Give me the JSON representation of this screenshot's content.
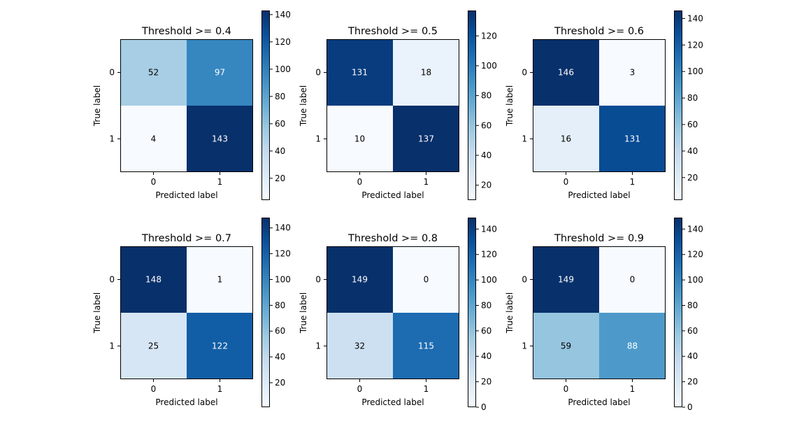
{
  "chart_data": [
    {
      "type": "heatmap",
      "title": "Threshold >= 0.4",
      "xlabel": "Predicted label",
      "ylabel": "True label",
      "x_tick_labels": [
        "0",
        "1"
      ],
      "y_tick_labels": [
        "0",
        "1"
      ],
      "values": [
        [
          52,
          97
        ],
        [
          4,
          143
        ]
      ],
      "colorbar": {
        "min": 4,
        "max": 143,
        "ticks": [
          20,
          40,
          60,
          80,
          100,
          120,
          140
        ],
        "colormap": "Blues"
      }
    },
    {
      "type": "heatmap",
      "title": "Threshold >= 0.5",
      "xlabel": "Predicted label",
      "ylabel": "True label",
      "x_tick_labels": [
        "0",
        "1"
      ],
      "y_tick_labels": [
        "0",
        "1"
      ],
      "values": [
        [
          131,
          18
        ],
        [
          10,
          137
        ]
      ],
      "colorbar": {
        "min": 10,
        "max": 137,
        "ticks": [
          20,
          40,
          60,
          80,
          100,
          120
        ],
        "colormap": "Blues"
      }
    },
    {
      "type": "heatmap",
      "title": "Threshold >= 0.6",
      "xlabel": "Predicted label",
      "ylabel": "True label",
      "x_tick_labels": [
        "0",
        "1"
      ],
      "y_tick_labels": [
        "0",
        "1"
      ],
      "values": [
        [
          146,
          3
        ],
        [
          16,
          131
        ]
      ],
      "colorbar": {
        "min": 3,
        "max": 146,
        "ticks": [
          20,
          40,
          60,
          80,
          100,
          120,
          140
        ],
        "colormap": "Blues"
      }
    },
    {
      "type": "heatmap",
      "title": "Threshold >= 0.7",
      "xlabel": "Predicted label",
      "ylabel": "True label",
      "x_tick_labels": [
        "0",
        "1"
      ],
      "y_tick_labels": [
        "0",
        "1"
      ],
      "values": [
        [
          148,
          1
        ],
        [
          25,
          122
        ]
      ],
      "colorbar": {
        "min": 1,
        "max": 148,
        "ticks": [
          20,
          40,
          60,
          80,
          100,
          120,
          140
        ],
        "colormap": "Blues"
      }
    },
    {
      "type": "heatmap",
      "title": "Threshold >= 0.8",
      "xlabel": "Predicted label",
      "ylabel": "True label",
      "x_tick_labels": [
        "0",
        "1"
      ],
      "y_tick_labels": [
        "0",
        "1"
      ],
      "values": [
        [
          149,
          0
        ],
        [
          32,
          115
        ]
      ],
      "colorbar": {
        "min": 0,
        "max": 149,
        "ticks": [
          0,
          20,
          40,
          60,
          80,
          100,
          120,
          140
        ],
        "colormap": "Blues"
      }
    },
    {
      "type": "heatmap",
      "title": "Threshold >= 0.9",
      "xlabel": "Predicted label",
      "ylabel": "True label",
      "x_tick_labels": [
        "0",
        "1"
      ],
      "y_tick_labels": [
        "0",
        "1"
      ],
      "values": [
        [
          149,
          0
        ],
        [
          59,
          88
        ]
      ],
      "colorbar": {
        "min": 0,
        "max": 149,
        "ticks": [
          0,
          20,
          40,
          60,
          80,
          100,
          120,
          140
        ],
        "colormap": "Blues"
      }
    }
  ]
}
